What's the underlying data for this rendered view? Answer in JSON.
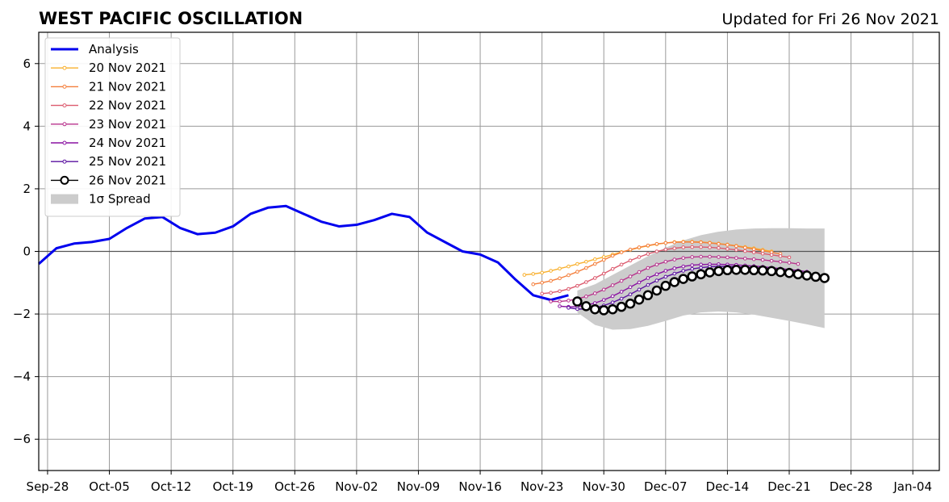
{
  "chart_data": {
    "type": "line",
    "title": "WEST PACIFIC OSCILLATION",
    "subtitle": "Updated for Fri 26 Nov 2021",
    "xlabel": "",
    "ylabel": "",
    "ylim": [
      -7,
      7
    ],
    "yticks": [
      -6,
      -4,
      -2,
      0,
      2,
      4,
      6
    ],
    "ytick_labels": [
      "−6",
      "−4",
      "−2",
      "0",
      "2",
      "4",
      "6"
    ],
    "xlim": [
      "2021-09-27",
      "2022-01-07"
    ],
    "xticks": [
      "2021-09-28",
      "2021-10-05",
      "2021-10-12",
      "2021-10-19",
      "2021-10-26",
      "2021-11-02",
      "2021-11-09",
      "2021-11-16",
      "2021-11-23",
      "2021-11-30",
      "2021-12-07",
      "2021-12-14",
      "2021-12-21",
      "2021-12-28",
      "2022-01-04"
    ],
    "xtick_labels": [
      "Sep-28",
      "Oct-05",
      "Oct-12",
      "Oct-19",
      "Oct-26",
      "Nov-02",
      "Nov-09",
      "Nov-16",
      "Nov-23",
      "Nov-30",
      "Dec-07",
      "Dec-14",
      "Dec-21",
      "Dec-28",
      "Jan-04"
    ],
    "grid": true,
    "legend_placement": "top-left",
    "analysis": {
      "name": "Analysis",
      "color": "#0000ee",
      "x": [
        "2021-09-27",
        "2021-09-29",
        "2021-10-01",
        "2021-10-03",
        "2021-10-05",
        "2021-10-07",
        "2021-10-09",
        "2021-10-11",
        "2021-10-13",
        "2021-10-15",
        "2021-10-17",
        "2021-10-19",
        "2021-10-21",
        "2021-10-23",
        "2021-10-25",
        "2021-10-27",
        "2021-10-29",
        "2021-10-31",
        "2021-11-02",
        "2021-11-04",
        "2021-11-06",
        "2021-11-08",
        "2021-11-10",
        "2021-11-12",
        "2021-11-14",
        "2021-11-16",
        "2021-11-18",
        "2021-11-20",
        "2021-11-22",
        "2021-11-24",
        "2021-11-26"
      ],
      "y": [
        -0.4,
        0.1,
        0.25,
        0.3,
        0.4,
        0.75,
        1.05,
        1.1,
        0.75,
        0.55,
        0.6,
        0.8,
        1.2,
        1.4,
        1.45,
        1.2,
        0.95,
        0.8,
        0.85,
        1.0,
        1.2,
        1.1,
        0.6,
        0.3,
        0.0,
        -0.1,
        -0.35,
        -0.9,
        -1.4,
        -1.55,
        -1.4
      ]
    },
    "forecasts": [
      {
        "name": "20 Nov 2021",
        "color": "#f8b02e",
        "start": "2021-11-21",
        "end": "2021-12-19",
        "y": [
          -0.75,
          -0.72,
          -0.68,
          -0.62,
          -0.55,
          -0.48,
          -0.4,
          -0.33,
          -0.25,
          -0.18,
          -0.1,
          -0.02,
          0.05,
          0.12,
          0.18,
          0.23,
          0.27,
          0.3,
          0.31,
          0.31,
          0.3,
          0.28,
          0.25,
          0.22,
          0.18,
          0.14,
          0.1,
          0.05,
          0.0
        ]
      },
      {
        "name": "21 Nov 2021",
        "color": "#f47f3c",
        "start": "2021-11-22",
        "end": "2021-12-20",
        "y": [
          -1.05,
          -1.0,
          -0.94,
          -0.86,
          -0.76,
          -0.65,
          -0.53,
          -0.4,
          -0.27,
          -0.14,
          -0.03,
          0.06,
          0.13,
          0.19,
          0.24,
          0.27,
          0.29,
          0.3,
          0.3,
          0.29,
          0.27,
          0.24,
          0.21,
          0.17,
          0.12,
          0.07,
          0.02,
          -0.03,
          -0.08
        ]
      },
      {
        "name": "22 Nov 2021",
        "color": "#dc5a6e",
        "start": "2021-11-23",
        "end": "2021-12-21",
        "y": [
          -1.35,
          -1.32,
          -1.27,
          -1.2,
          -1.1,
          -0.98,
          -0.85,
          -0.71,
          -0.56,
          -0.42,
          -0.29,
          -0.18,
          -0.08,
          0.0,
          0.06,
          0.1,
          0.13,
          0.14,
          0.14,
          0.13,
          0.11,
          0.08,
          0.05,
          0.01,
          -0.03,
          -0.07,
          -0.11,
          -0.15,
          -0.19
        ]
      },
      {
        "name": "23 Nov 2021",
        "color": "#b8338d",
        "start": "2021-11-24",
        "end": "2021-12-22",
        "y": [
          -1.6,
          -1.6,
          -1.57,
          -1.52,
          -1.44,
          -1.34,
          -1.22,
          -1.08,
          -0.94,
          -0.8,
          -0.66,
          -0.53,
          -0.42,
          -0.33,
          -0.26,
          -0.21,
          -0.18,
          -0.17,
          -0.17,
          -0.18,
          -0.19,
          -0.21,
          -0.23,
          -0.25,
          -0.27,
          -0.3,
          -0.33,
          -0.36,
          -0.4
        ]
      },
      {
        "name": "24 Nov 2021",
        "color": "#8a12a2",
        "start": "2021-11-25",
        "end": "2021-12-23",
        "y": [
          -1.75,
          -1.77,
          -1.76,
          -1.72,
          -1.65,
          -1.55,
          -1.43,
          -1.29,
          -1.14,
          -0.99,
          -0.85,
          -0.73,
          -0.62,
          -0.54,
          -0.48,
          -0.44,
          -0.42,
          -0.41,
          -0.41,
          -0.42,
          -0.43,
          -0.45,
          -0.47,
          -0.49,
          -0.52,
          -0.55,
          -0.58,
          -0.61,
          -0.65
        ]
      },
      {
        "name": "25 Nov 2021",
        "color": "#5a10a0",
        "start": "2021-11-26",
        "end": "2021-12-24",
        "y": [
          -1.8,
          -1.84,
          -1.84,
          -1.8,
          -1.73,
          -1.63,
          -1.51,
          -1.37,
          -1.22,
          -1.07,
          -0.93,
          -0.81,
          -0.71,
          -0.62,
          -0.56,
          -0.52,
          -0.49,
          -0.48,
          -0.48,
          -0.49,
          -0.5,
          -0.52,
          -0.54,
          -0.57,
          -0.6,
          -0.63,
          -0.67,
          -0.71,
          -0.75
        ]
      },
      {
        "name": "26 Nov 2021",
        "color": "#000000",
        "start": "2021-11-27",
        "end": "2021-12-25",
        "y": [
          -1.6,
          -1.75,
          -1.85,
          -1.88,
          -1.85,
          -1.77,
          -1.67,
          -1.54,
          -1.4,
          -1.25,
          -1.1,
          -0.98,
          -0.88,
          -0.8,
          -0.73,
          -0.67,
          -0.63,
          -0.6,
          -0.59,
          -0.59,
          -0.6,
          -0.61,
          -0.63,
          -0.66,
          -0.69,
          -0.73,
          -0.77,
          -0.81,
          -0.85
        ]
      }
    ],
    "spread": {
      "name": "1σ Spread",
      "color": "#cccccc",
      "x": [
        "2021-11-27",
        "2021-11-29",
        "2021-12-01",
        "2021-12-03",
        "2021-12-05",
        "2021-12-07",
        "2021-12-09",
        "2021-12-11",
        "2021-12-13",
        "2021-12-15",
        "2021-12-17",
        "2021-12-19",
        "2021-12-21",
        "2021-12-23",
        "2021-12-25"
      ],
      "upper": [
        -1.25,
        -1.05,
        -0.75,
        -0.45,
        -0.15,
        0.12,
        0.35,
        0.52,
        0.63,
        0.7,
        0.73,
        0.74,
        0.74,
        0.73,
        0.73
      ],
      "lower": [
        -1.95,
        -2.35,
        -2.5,
        -2.48,
        -2.38,
        -2.22,
        -2.05,
        -1.95,
        -1.92,
        -1.95,
        -2.02,
        -2.12,
        -2.22,
        -2.33,
        -2.45
      ]
    },
    "legend": [
      "Analysis",
      "20 Nov 2021",
      "21 Nov 2021",
      "22 Nov 2021",
      "23 Nov 2021",
      "24 Nov 2021",
      "25 Nov 2021",
      "26 Nov 2021",
      "1σ Spread"
    ]
  }
}
